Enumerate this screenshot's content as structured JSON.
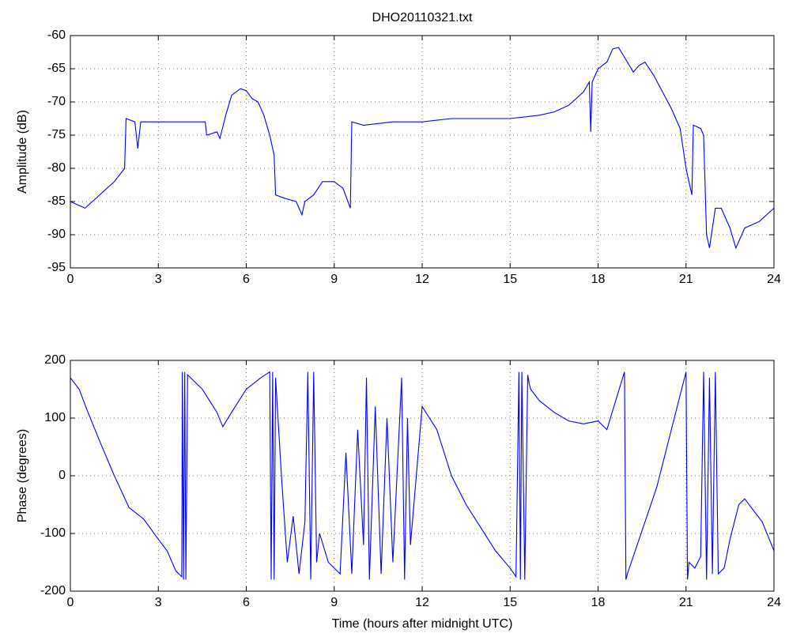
{
  "chart_data": [
    {
      "type": "line",
      "title": "DHO20110321.txt",
      "ylabel": "Amplitude (dB)",
      "x": [
        0,
        0.5,
        1,
        1.5,
        1.85,
        1.9,
        2.2,
        2.3,
        2.4,
        3,
        3.5,
        4,
        4.6,
        4.65,
        5,
        5.1,
        5.3,
        5.5,
        5.8,
        6,
        6.2,
        6.4,
        6.6,
        6.8,
        6.95,
        7,
        7.3,
        7.7,
        7.9,
        8,
        8.3,
        8.6,
        9,
        9.3,
        9.55,
        9.6,
        10,
        11,
        12,
        13,
        14,
        15,
        16,
        16.5,
        17,
        17.5,
        17.7,
        17.75,
        17.8,
        18,
        18.3,
        18.5,
        18.7,
        19,
        19.2,
        19.4,
        19.6,
        19.9,
        20.2,
        20.5,
        20.8,
        21,
        21.2,
        21.25,
        21.5,
        21.6,
        21.7,
        21.8,
        22,
        22.2,
        22.5,
        22.7,
        23,
        23.5,
        24
      ],
      "values": [
        -85,
        -86,
        -84,
        -82,
        -80,
        -72.5,
        -73,
        -77,
        -73,
        -73,
        -73,
        -73,
        -73,
        -75,
        -74.5,
        -75.5,
        -72,
        -69,
        -68,
        -68.3,
        -69.5,
        -70,
        -72,
        -75,
        -78,
        -84,
        -84.5,
        -85,
        -87,
        -85,
        -84,
        -82,
        -82,
        -83,
        -86,
        -73,
        -73.5,
        -73,
        -73,
        -72.5,
        -72.5,
        -72.5,
        -72,
        -71.5,
        -70.5,
        -68.5,
        -67,
        -74.5,
        -67,
        -65,
        -64,
        -62,
        -61.8,
        -64,
        -65.5,
        -64.5,
        -64,
        -66,
        -68.5,
        -71,
        -74,
        -80,
        -84,
        -73.5,
        -74,
        -75,
        -90,
        -92,
        -86,
        -86,
        -89,
        -92,
        -89,
        -88,
        -86
      ],
      "color": "#0000ff",
      "xlim": [
        0,
        24
      ],
      "xticks": [
        0,
        3,
        6,
        9,
        12,
        15,
        18,
        21,
        24
      ],
      "ylim": [
        -95,
        -60
      ],
      "yticks": [
        -95,
        -90,
        -85,
        -80,
        -75,
        -70,
        -65,
        -60
      ],
      "grid": true
    },
    {
      "type": "line",
      "ylabel": "Phase (degrees)",
      "xlabel": "Time (hours after midnight UTC)",
      "x": [
        0,
        0.3,
        0.6,
        1,
        1.5,
        2,
        2.5,
        3,
        3.3,
        3.6,
        3.8,
        3.82,
        3.86,
        3.9,
        3.94,
        4,
        4.5,
        5,
        5.2,
        5.5,
        6,
        6.5,
        6.8,
        6.85,
        6.9,
        6.95,
        7,
        7.2,
        7.4,
        7.6,
        7.8,
        8,
        8.1,
        8.2,
        8.3,
        8.4,
        8.5,
        8.8,
        9.2,
        9.4,
        9.6,
        9.8,
        10,
        10.1,
        10.2,
        10.4,
        10.6,
        10.8,
        11,
        11.3,
        11.4,
        11.5,
        11.6,
        12,
        12.5,
        13,
        13.5,
        14,
        14.5,
        15,
        15.2,
        15.3,
        15.35,
        15.4,
        15.5,
        15.6,
        15.65,
        15.7,
        16,
        16.5,
        17,
        17.5,
        18,
        18.3,
        18.9,
        18.95,
        19,
        20,
        20.5,
        21,
        21.05,
        21.1,
        21.3,
        21.5,
        21.6,
        21.7,
        21.8,
        21.9,
        22,
        22.1,
        22.3,
        22.5,
        22.8,
        23,
        23.3,
        23.6,
        24
      ],
      "values": [
        170,
        150,
        110,
        60,
        0,
        -55,
        -75,
        -110,
        -130,
        -165,
        -175,
        180,
        -180,
        180,
        -180,
        175,
        150,
        110,
        85,
        110,
        150,
        170,
        180,
        -180,
        180,
        -180,
        170,
        0,
        -150,
        -70,
        -170,
        -80,
        180,
        -180,
        180,
        -150,
        -100,
        -150,
        -170,
        40,
        -170,
        80,
        -120,
        170,
        -180,
        120,
        -170,
        100,
        -150,
        170,
        -180,
        100,
        -120,
        120,
        80,
        0,
        -50,
        -90,
        -130,
        -160,
        -175,
        180,
        -180,
        180,
        -180,
        175,
        160,
        150,
        130,
        110,
        95,
        90,
        95,
        80,
        180,
        -180,
        -170,
        -20,
        80,
        180,
        -180,
        -150,
        -160,
        -140,
        180,
        -180,
        170,
        -170,
        180,
        -170,
        -160,
        -110,
        -50,
        -40,
        -60,
        -80,
        -130
      ],
      "color": "#0000ff",
      "xlim": [
        0,
        24
      ],
      "xticks": [
        0,
        3,
        6,
        9,
        12,
        15,
        18,
        21,
        24
      ],
      "ylim": [
        -200,
        200
      ],
      "yticks": [
        -200,
        -100,
        0,
        100,
        200
      ],
      "grid": true
    }
  ]
}
